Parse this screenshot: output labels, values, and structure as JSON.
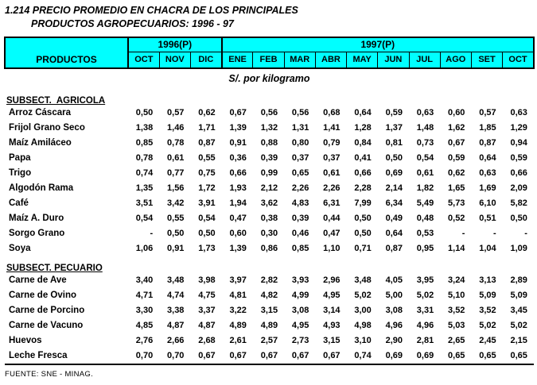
{
  "page": {
    "title_line1": "1.214 PRECIO PROMEDIO EN CHACRA DE LOS PRINCIPALES",
    "title_line2": "PRODUCTOS AGROPECUARIOS: 1996 - 97",
    "unit_label": "S/. por kilogramo",
    "source": "FUENTE: SNE - MINAG."
  },
  "colors": {
    "header_bg": "#00ffff",
    "border": "#000000",
    "text": "#000000"
  },
  "table": {
    "products_header": "PRODUCTOS",
    "year_groups": [
      {
        "label": "1996(P)",
        "span": 3
      },
      {
        "label": "1997(P)",
        "span": 10
      }
    ],
    "months": [
      "OCT",
      "NOV",
      "DIC",
      "ENE",
      "FEB",
      "MAR",
      "ABR",
      "MAY",
      "JUN",
      "JUL",
      "AGO",
      "SET",
      "OCT"
    ],
    "sections": [
      {
        "label": "SUBSECT.  AGRICOLA",
        "rows": [
          {
            "product": "Arroz Cáscara",
            "values": [
              "0,50",
              "0,57",
              "0,62",
              "0,67",
              "0,56",
              "0,56",
              "0,68",
              "0,64",
              "0,59",
              "0,63",
              "0,60",
              "0,57",
              "0,63"
            ]
          },
          {
            "product": "Frijol Grano Seco",
            "values": [
              "1,38",
              "1,46",
              "1,71",
              "1,39",
              "1,32",
              "1,31",
              "1,41",
              "1,28",
              "1,37",
              "1,48",
              "1,62",
              "1,85",
              "1,29"
            ]
          },
          {
            "product": "Maíz Amiláceo",
            "values": [
              "0,85",
              "0,78",
              "0,87",
              "0,91",
              "0,88",
              "0,80",
              "0,79",
              "0,84",
              "0,81",
              "0,73",
              "0,67",
              "0,87",
              "0,94"
            ]
          },
          {
            "product": "Papa",
            "values": [
              "0,78",
              "0,61",
              "0,55",
              "0,36",
              "0,39",
              "0,37",
              "0,37",
              "0,41",
              "0,50",
              "0,54",
              "0,59",
              "0,64",
              "0,59"
            ]
          },
          {
            "product": "Trigo",
            "values": [
              "0,74",
              "0,77",
              "0,75",
              "0,66",
              "0,99",
              "0,65",
              "0,61",
              "0,66",
              "0,69",
              "0,61",
              "0,62",
              "0,63",
              "0,66"
            ]
          },
          {
            "product": "Algodón Rama",
            "values": [
              "1,35",
              "1,56",
              "1,72",
              "1,93",
              "2,12",
              "2,26",
              "2,26",
              "2,28",
              "2,14",
              "1,82",
              "1,65",
              "1,69",
              "2,09"
            ]
          },
          {
            "product": "Café",
            "values": [
              "3,51",
              "3,42",
              "3,91",
              "1,94",
              "3,62",
              "4,83",
              "6,31",
              "7,99",
              "6,34",
              "5,49",
              "5,73",
              "6,10",
              "5,82"
            ]
          },
          {
            "product": "Maíz A. Duro",
            "values": [
              "0,54",
              "0,55",
              "0,54",
              "0,47",
              "0,38",
              "0,39",
              "0,44",
              "0,50",
              "0,49",
              "0,48",
              "0,52",
              "0,51",
              "0,50"
            ]
          },
          {
            "product": "Sorgo Grano",
            "values": [
              "-",
              "0,50",
              "0,50",
              "0,60",
              "0,30",
              "0,46",
              "0,47",
              "0,50",
              "0,64",
              "0,53",
              "-",
              "-",
              "-"
            ]
          },
          {
            "product": "Soya",
            "values": [
              "1,06",
              "0,91",
              "1,73",
              "1,39",
              "0,86",
              "0,85",
              "1,10",
              "0,71",
              "0,87",
              "0,95",
              "1,14",
              "1,04",
              "1,09"
            ]
          }
        ]
      },
      {
        "label": "SUBSECT. PECUARIO",
        "rows": [
          {
            "product": "Carne de Ave",
            "values": [
              "3,40",
              "3,48",
              "3,98",
              "3,97",
              "2,82",
              "3,93",
              "2,96",
              "3,48",
              "4,05",
              "3,95",
              "3,24",
              "3,13",
              "2,89"
            ]
          },
          {
            "product": "Carne de Ovino",
            "values": [
              "4,71",
              "4,74",
              "4,75",
              "4,81",
              "4,82",
              "4,99",
              "4,95",
              "5,02",
              "5,00",
              "5,02",
              "5,10",
              "5,09",
              "5,09"
            ]
          },
          {
            "product": "Carne de Porcino",
            "values": [
              "3,30",
              "3,38",
              "3,37",
              "3,22",
              "3,15",
              "3,08",
              "3,14",
              "3,00",
              "3,08",
              "3,31",
              "3,52",
              "3,52",
              "3,45"
            ]
          },
          {
            "product": "Carne de Vacuno",
            "values": [
              "4,85",
              "4,87",
              "4,87",
              "4,89",
              "4,89",
              "4,95",
              "4,93",
              "4,98",
              "4,96",
              "4,96",
              "5,03",
              "5,02",
              "5,02"
            ]
          },
          {
            "product": "Huevos",
            "values": [
              "2,76",
              "2,66",
              "2,68",
              "2,61",
              "2,57",
              "2,73",
              "3,15",
              "3,10",
              "2,90",
              "2,81",
              "2,65",
              "2,45",
              "2,15"
            ]
          },
          {
            "product": "Leche Fresca",
            "values": [
              "0,70",
              "0,70",
              "0,67",
              "0,67",
              "0,67",
              "0,67",
              "0,67",
              "0,74",
              "0,69",
              "0,69",
              "0,65",
              "0,65",
              "0,65"
            ]
          }
        ]
      }
    ]
  }
}
